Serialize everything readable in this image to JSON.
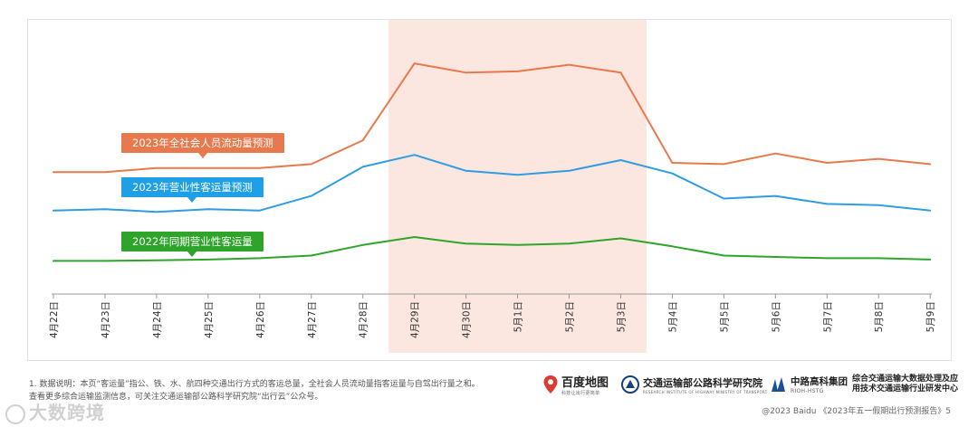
{
  "chart_data": {
    "type": "line",
    "categories": [
      "4月22日",
      "4月23日",
      "4月24日",
      "4月25日",
      "4月26日",
      "4月27日",
      "4月28日",
      "4月29日",
      "4月30日",
      "5月1日",
      "5月2日",
      "5月3日",
      "5月4日",
      "5月5日",
      "5月6日",
      "5月7日",
      "5月8日",
      "5月9日"
    ],
    "highlight_range": [
      "4月29日",
      "5月3日"
    ],
    "highlight_color": "#fce6e0",
    "ylim": [
      0,
      100
    ],
    "grid": false,
    "series": [
      {
        "name": "2023年全社会人员流动量预测",
        "color": "#e8794c",
        "values": [
          46,
          46,
          47.5,
          47.5,
          47.5,
          49,
          58,
          87,
          83.5,
          84,
          86.5,
          83.5,
          49.5,
          49,
          53,
          49.5,
          51,
          49
        ]
      },
      {
        "name": "2023年营业性客运量预测",
        "color": "#2f9de0",
        "values": [
          31.5,
          32,
          31,
          32,
          31.5,
          37,
          48,
          52.5,
          46.5,
          45,
          46.5,
          50.5,
          45.5,
          36,
          37,
          34,
          33.5,
          31.5
        ]
      },
      {
        "name": "2022年同期营业性客运量",
        "color": "#2ea52a",
        "values": [
          12.5,
          12.5,
          12.7,
          13,
          13.5,
          14.5,
          18.5,
          21.5,
          19,
          18.5,
          19,
          21,
          18,
          14.5,
          14,
          13.5,
          13.5,
          13
        ]
      }
    ]
  },
  "footnote": {
    "line1": "1. 数据说明：本页“客运量”指公、铁、水、航四种交通出行方式的客运总量，全社会人员流动量指客运量与自驾出行量之和。",
    "line2": "查看更多综合运输监测信息，可关注交通运输部公路科学研究院“出行云”公众号。"
  },
  "watermark": "大数跨境",
  "logos": {
    "baidu_map": "百度地图",
    "baidu_map_sub": "科技让出行更简单",
    "institute": "交通运输部公路科学研究院",
    "institute_sub": "RESEARCH INSTITUTE OF HIGHWAY MINISTRY OF TRANSPORT",
    "group": "中路高科集团",
    "group_sub": "RIOH-HSTG",
    "center_line1": "综合交通运输大数据处理及应",
    "center_line2": "用技术交通运输行业研发中心"
  },
  "copyright": "@2023 Baidu 《2023年五一假期出行预测报告》5"
}
